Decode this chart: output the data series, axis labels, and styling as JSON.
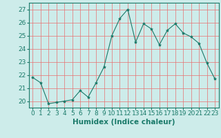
{
  "x": [
    0,
    1,
    2,
    3,
    4,
    5,
    6,
    7,
    8,
    9,
    10,
    11,
    12,
    13,
    14,
    15,
    16,
    17,
    18,
    19,
    20,
    21,
    22,
    23
  ],
  "y": [
    21.8,
    21.4,
    19.8,
    19.9,
    20.0,
    20.1,
    20.8,
    20.3,
    21.4,
    22.6,
    25.0,
    26.3,
    27.0,
    24.5,
    25.9,
    25.5,
    24.3,
    25.4,
    25.9,
    25.2,
    24.9,
    24.4,
    22.9,
    21.7
  ],
  "line_color": "#1a7a6a",
  "marker": "*",
  "marker_size": 3,
  "bg_color": "#cdecea",
  "grid_color": "#e87070",
  "xlabel": "Humidex (Indice chaleur)",
  "ylim": [
    19.5,
    27.5
  ],
  "xlim": [
    -0.5,
    23.5
  ],
  "yticks": [
    20,
    21,
    22,
    23,
    24,
    25,
    26,
    27
  ],
  "xticks": [
    0,
    1,
    2,
    3,
    4,
    5,
    6,
    7,
    8,
    9,
    10,
    11,
    12,
    13,
    14,
    15,
    16,
    17,
    18,
    19,
    20,
    21,
    22,
    23
  ],
  "tick_label_fontsize": 6.5,
  "xlabel_fontsize": 7.5
}
